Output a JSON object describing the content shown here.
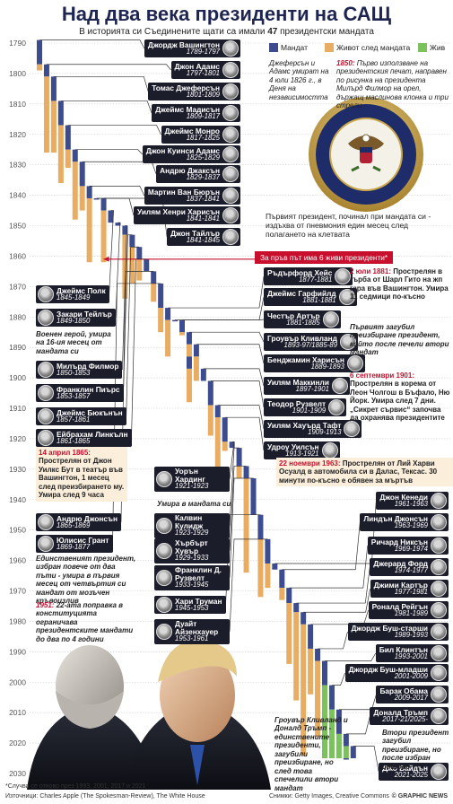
{
  "chart_data": {
    "type": "timeline",
    "title": "Над два века президенти на САЩ",
    "subtitle_before": "В историята си Съединените щати са имали",
    "mandates": 47,
    "subtitle_after": "президентски мандата",
    "ylim": [
      1790,
      2030
    ],
    "yticks": [
      1790,
      1800,
      1810,
      1820,
      1830,
      1840,
      1850,
      1860,
      1870,
      1880,
      1890,
      1900,
      1910,
      1920,
      1930,
      1940,
      1950,
      1960,
      1970,
      1980,
      1990,
      2000,
      2010,
      2020,
      2030
    ],
    "grid": true,
    "present": 2025,
    "legend": [
      {
        "name": "Мандат",
        "color": "#3d4b8f"
      },
      {
        "name": "Живот след мандата",
        "color": "#e9ac63"
      },
      {
        "name": "Жив",
        "color": "#7cc25c"
      }
    ],
    "presidents": [
      {
        "name": "Джордж Вашингтон",
        "years": "1789-1797",
        "terms": [
          [
            1789,
            1797
          ]
        ],
        "death": 1799
      },
      {
        "name": "Джон Адамс",
        "years": "1797-1801",
        "terms": [
          [
            1797,
            1801
          ]
        ],
        "death": 1826
      },
      {
        "name": "Томас Джеферсън",
        "years": "1801-1809",
        "terms": [
          [
            1801,
            1809
          ]
        ],
        "death": 1826
      },
      {
        "name": "Джеймс Мадисън",
        "years": "1809-1817",
        "terms": [
          [
            1809,
            1817
          ]
        ],
        "death": 1836
      },
      {
        "name": "Джеймс Монро",
        "years": "1817-1825",
        "terms": [
          [
            1817,
            1825
          ]
        ],
        "death": 1831
      },
      {
        "name": "Джон Куинси Адамс",
        "years": "1825-1829",
        "terms": [
          [
            1825,
            1829
          ]
        ],
        "death": 1848
      },
      {
        "name": "Андрю Джаксън",
        "years": "1829-1837",
        "terms": [
          [
            1829,
            1837
          ]
        ],
        "death": 1845
      },
      {
        "name": "Мартин Ван Бюрън",
        "years": "1837-1841",
        "terms": [
          [
            1837,
            1841
          ]
        ],
        "death": 1862
      },
      {
        "name": "Уилям Хенри Харисън",
        "years": "1841-1841",
        "terms": [
          [
            1841,
            1841
          ]
        ],
        "death": 1841
      },
      {
        "name": "Джон Тайлър",
        "years": "1841-1845",
        "terms": [
          [
            1841,
            1845
          ]
        ],
        "death": 1862
      },
      {
        "name": "Джеймс Полк",
        "years": "1845-1849",
        "terms": [
          [
            1845,
            1849
          ]
        ],
        "death": 1849
      },
      {
        "name": "Закари Тейлър",
        "years": "1849-1850",
        "terms": [
          [
            1849,
            1850
          ]
        ],
        "death": 1850
      },
      {
        "name": "Милърд Филмор",
        "years": "1850-1853",
        "terms": [
          [
            1850,
            1853
          ]
        ],
        "death": 1874
      },
      {
        "name": "Франклин Пиърс",
        "years": "1853-1857",
        "terms": [
          [
            1853,
            1857
          ]
        ],
        "death": 1869
      },
      {
        "name": "Джеймс Бюкънън",
        "years": "1857-1861",
        "terms": [
          [
            1857,
            1861
          ]
        ],
        "death": 1868
      },
      {
        "name": "Ейбрахам Линкълн",
        "years": "1861-1865",
        "terms": [
          [
            1861,
            1865
          ]
        ],
        "death": 1865
      },
      {
        "name": "Андрю Джонсън",
        "years": "1865-1869",
        "terms": [
          [
            1865,
            1869
          ]
        ],
        "death": 1875
      },
      {
        "name": "Юлисис Грант",
        "years": "1869-1877",
        "terms": [
          [
            1869,
            1877
          ]
        ],
        "death": 1885
      },
      {
        "name": "Ръдърфорд Хейс",
        "years": "1877-1881",
        "terms": [
          [
            1877,
            1881
          ]
        ],
        "death": 1893
      },
      {
        "name": "Джеймс Гарфийлд",
        "years": "1881-1881",
        "terms": [
          [
            1881,
            1881
          ]
        ],
        "death": 1881
      },
      {
        "name": "Честър Артър",
        "years": "1881-1885",
        "terms": [
          [
            1881,
            1885
          ]
        ],
        "death": 1886
      },
      {
        "name": "Гроувър Кливланд",
        "years": "1893-97/1885-89",
        "terms": [
          [
            1885,
            1889
          ],
          [
            1893,
            1897
          ]
        ],
        "death": 1908
      },
      {
        "name": "Бенджамин Харисън",
        "years": "1889-1893",
        "terms": [
          [
            1889,
            1893
          ]
        ],
        "death": 1901
      },
      {
        "name": "Уилям Маккинли",
        "years": "1897-1901",
        "terms": [
          [
            1897,
            1901
          ]
        ],
        "death": 1901
      },
      {
        "name": "Теодор Рузвелт",
        "years": "1901-1909",
        "terms": [
          [
            1901,
            1909
          ]
        ],
        "death": 1919
      },
      {
        "name": "Уилям Хауърд Тафт",
        "years": "1909-1913",
        "terms": [
          [
            1909,
            1913
          ]
        ],
        "death": 1930
      },
      {
        "name": "Удроу Уилсън",
        "years": "1913-1921",
        "terms": [
          [
            1913,
            1921
          ]
        ],
        "death": 1924
      },
      {
        "name": "Уорън Хардинг",
        "years": "1921-1923",
        "terms": [
          [
            1921,
            1923
          ]
        ],
        "death": 1923
      },
      {
        "name": "Калвин Кулидж",
        "years": "1923-1929",
        "terms": [
          [
            1923,
            1929
          ]
        ],
        "death": 1933
      },
      {
        "name": "Хърбърт Хувър",
        "years": "1929-1933",
        "terms": [
          [
            1929,
            1933
          ]
        ],
        "death": 1964
      },
      {
        "name": "Франклин Д. Рузвелт",
        "years": "1933-1945",
        "terms": [
          [
            1933,
            1945
          ]
        ],
        "death": 1945
      },
      {
        "name": "Хари Труман",
        "years": "1945-1953",
        "terms": [
          [
            1945,
            1953
          ]
        ],
        "death": 1972
      },
      {
        "name": "Дуайт Айзенхауер",
        "years": "1953-1961",
        "terms": [
          [
            1953,
            1961
          ]
        ],
        "death": 1969
      },
      {
        "name": "Джон Кенеди",
        "years": "1961-1963",
        "terms": [
          [
            1961,
            1963
          ]
        ],
        "death": 1963
      },
      {
        "name": "Линдън Джонсън",
        "years": "1963-1969",
        "terms": [
          [
            1963,
            1969
          ]
        ],
        "death": 1973
      },
      {
        "name": "Ричард Никсън",
        "years": "1969-1974",
        "terms": [
          [
            1969,
            1974
          ]
        ],
        "death": 1994
      },
      {
        "name": "Джерард Форд",
        "years": "1974-1977",
        "terms": [
          [
            1974,
            1977
          ]
        ],
        "death": 2006
      },
      {
        "name": "Джими Картър",
        "years": "1977-1981",
        "terms": [
          [
            1977,
            1981
          ]
        ],
        "death": 2024
      },
      {
        "name": "Роналд Рейгън",
        "years": "1981-1989",
        "terms": [
          [
            1981,
            1989
          ]
        ],
        "death": 2004
      },
      {
        "name": "Джордж Буш-старши",
        "years": "1989-1993",
        "terms": [
          [
            1989,
            1993
          ]
        ],
        "death": 2018
      },
      {
        "name": "Бил Клинтън",
        "years": "1993-2001",
        "terms": [
          [
            1993,
            2001
          ]
        ],
        "death": null
      },
      {
        "name": "Джордж Буш-младши",
        "years": "2001-2009",
        "terms": [
          [
            2001,
            2009
          ]
        ],
        "death": null
      },
      {
        "name": "Барак Обама",
        "years": "2009-2017",
        "terms": [
          [
            2009,
            2017
          ]
        ],
        "death": null
      },
      {
        "name": "Доналд Тръмп",
        "years": "2017-21/2025-",
        "terms": [
          [
            2017,
            2021
          ],
          [
            2025,
            null
          ]
        ],
        "death": null
      },
      {
        "name": "Джо Байдън",
        "years": "2021-2025",
        "terms": [
          [
            2021,
            2025
          ]
        ],
        "death": null
      }
    ],
    "banner": {
      "text": "За пръв път има 6 живи президенти*",
      "year": 1861
    },
    "annotations": [
      {
        "text": "Джеферсън и Адамс умират на 4 юли 1826 г., в Деня на независимостта"
      },
      {
        "lead": "1850:",
        "text": "Първо използване на президентския печат, направен по рисунка на президента Милърд Филмор на орел, държащ маслинова клонка и три стрели"
      },
      {
        "text": "Първият президент, починал при мандата си - издъхва от пневмония един месец след полагането на клетвата"
      },
      {
        "lead": "2 юли 1881:",
        "text": "Прострелян в гърба от Шарл Гито на жп гара във Вашингтон. Умира 11 седмици по-късно"
      },
      {
        "text": "Военен герой, умира на 16-ия месец от мандата си"
      },
      {
        "text": "Първият загубил преизбиране президент, който после печели втори мандат"
      },
      {
        "lead": "6 септември 1901:",
        "text": "Прострелян в корема от Леон Чолгош в Бъфало, Ню Йорк. Умира след 7 дни. „Сикрет сървис“ започва да охранява президентите"
      },
      {
        "lead": "14 април 1865:",
        "text": "Прострелян от Джон Уилкс Бут в театър във Вашингтон, 1 месец след преизбирането му. Умира след 9 часа"
      },
      {
        "lead": "22 ноември 1963:",
        "text": "Прострелян от Лий Харви Осуалд в автомобила си в Далас, Тексас. 30 минути по-късно е обявен за мъртъв"
      },
      {
        "text": "Умира в мандата си"
      },
      {
        "text": "Единственият президент, избран повече от два пъти - умира в първия месец от четвъртия си мандат от мозъчен кръвоизлив"
      },
      {
        "lead": "1951:",
        "text": "22-ата поправка в конституцията ограничава президентските мандати до два по 4 години"
      },
      {
        "text": "Гроувър Кливланд и Доналд Тръмп - единствените президенти, загубили преизбиране, но след това спечелили втори мандат"
      },
      {
        "text": "Втори президент загубил преизбиране, но после избран отново"
      }
    ],
    "footnote": "*Случва се отново през 1993, 2001, 2017 и 2021",
    "sources": "Източници: Charles Apple (The Spokesman-Review), The White House",
    "photos": "Снимки: Getty Images, Creative Commons",
    "credit": "© GRAPHIC NEWS"
  }
}
